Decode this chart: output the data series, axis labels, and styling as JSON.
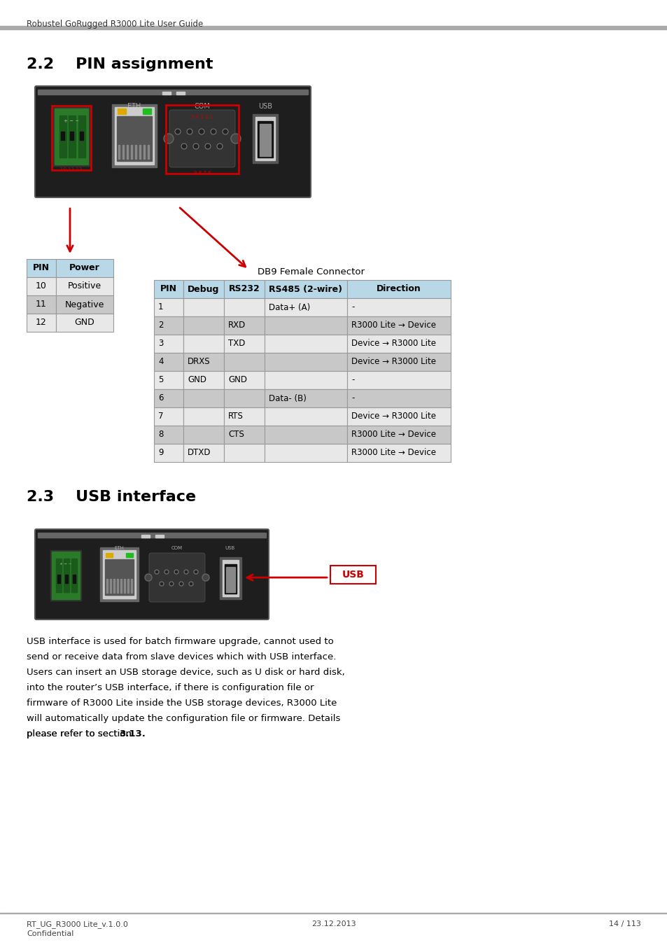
{
  "header_text": "Robustel GoRugged R3000 Lite User Guide",
  "section_22_title": "2.2    PIN assignment",
  "section_23_title": "2.3    USB interface",
  "power_table_headers": [
    "PIN",
    "Power"
  ],
  "power_table_rows": [
    [
      "10",
      "Positive"
    ],
    [
      "11",
      "Negative"
    ],
    [
      "12",
      "GND"
    ]
  ],
  "db9_label": "DB9 Female Connector",
  "db9_table_headers": [
    "PIN",
    "Debug",
    "RS232",
    "RS485 (2-wire)",
    "Direction"
  ],
  "db9_table_rows": [
    [
      "1",
      "",
      "",
      "Data+ (A)",
      "-"
    ],
    [
      "2",
      "",
      "RXD",
      "",
      "R3000 Lite → Device"
    ],
    [
      "3",
      "",
      "TXD",
      "",
      "Device → R3000 Lite"
    ],
    [
      "4",
      "DRXS",
      "",
      "",
      "Device → R3000 Lite"
    ],
    [
      "5",
      "GND",
      "GND",
      "",
      "-"
    ],
    [
      "6",
      "",
      "",
      "Data- (B)",
      "-"
    ],
    [
      "7",
      "",
      "RTS",
      "",
      "Device → R3000 Lite"
    ],
    [
      "8",
      "",
      "CTS",
      "",
      "R3000 Lite → Device"
    ],
    [
      "9",
      "DTXD",
      "",
      "",
      "R3000 Lite → Device"
    ]
  ],
  "usb_body_text": [
    "USB interface is used for batch firmware upgrade, cannot used to",
    "send or receive data from slave devices which with USB interface.",
    "Users can insert an USB storage device, such as U disk or hard disk,",
    "into the router’s USB interface, if there is configuration file or",
    "firmware of R3000 Lite inside the USB storage devices, R3000 Lite",
    "will automatically update the configuration file or firmware. Details",
    "please refer to section "
  ],
  "usb_body_bold_ref": "3.13.",
  "footer_left": "RT_UG_R3000 Lite_v.1.0.0\nConfidential",
  "footer_center": "23.12.2013",
  "footer_right": "14 / 113",
  "table_header_bg": "#b8d8e8",
  "table_row_light": "#e8e8e8",
  "table_row_dark": "#c8c8c8",
  "table_border_color": "#999999",
  "red_color": "#cc0000"
}
